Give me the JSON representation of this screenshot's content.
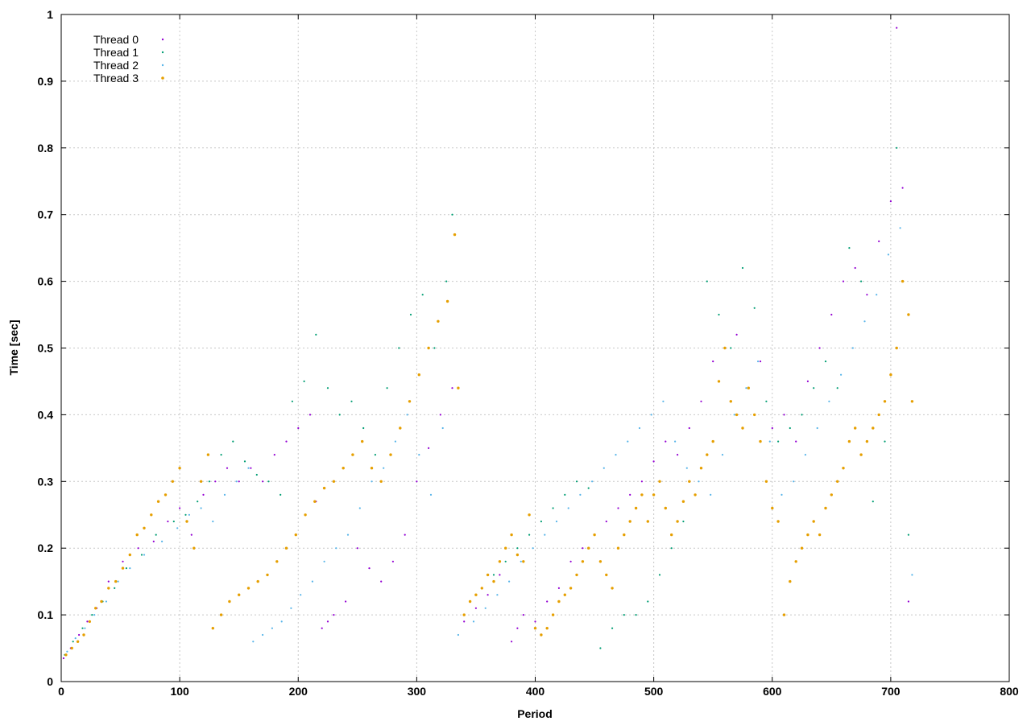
{
  "chart_data": {
    "type": "scatter",
    "title": "",
    "xlabel": "Period",
    "ylabel": "Time [sec]",
    "xlim": [
      0,
      800
    ],
    "ylim": [
      0,
      1
    ],
    "x_ticks": [
      "0",
      "100",
      "200",
      "300",
      "400",
      "500",
      "600",
      "700",
      "800"
    ],
    "y_ticks": [
      "0",
      "0.1",
      "0.2",
      "0.3",
      "0.4",
      "0.5",
      "0.6",
      "0.7",
      "0.8",
      "0.9",
      "1"
    ],
    "grid": true,
    "legend_position": "top-left",
    "series": [
      {
        "name": "Thread 0",
        "color": "#9400d3",
        "x": [
          2,
          8,
          15,
          22,
          30,
          40,
          52,
          65,
          78,
          90,
          100,
          110,
          120,
          130,
          140,
          150,
          160,
          170,
          180,
          190,
          200,
          210,
          215,
          220,
          225,
          230,
          240,
          250,
          260,
          270,
          280,
          290,
          300,
          310,
          320,
          330,
          340,
          350,
          360,
          370,
          380,
          385,
          390,
          400,
          410,
          420,
          430,
          440,
          450,
          460,
          470,
          480,
          490,
          500,
          510,
          520,
          530,
          540,
          550,
          560,
          570,
          580,
          590,
          600,
          610,
          620,
          630,
          640,
          650,
          660,
          670,
          680,
          690,
          700,
          705,
          710,
          715
        ],
        "y": [
          0.035,
          0.05,
          0.07,
          0.09,
          0.11,
          0.15,
          0.18,
          0.2,
          0.21,
          0.24,
          0.26,
          0.22,
          0.28,
          0.3,
          0.32,
          0.3,
          0.32,
          0.3,
          0.34,
          0.36,
          0.38,
          0.4,
          0.27,
          0.08,
          0.09,
          0.1,
          0.12,
          0.2,
          0.17,
          0.15,
          0.18,
          0.22,
          0.3,
          0.35,
          0.4,
          0.44,
          0.09,
          0.11,
          0.13,
          0.16,
          0.06,
          0.08,
          0.1,
          0.09,
          0.12,
          0.14,
          0.18,
          0.2,
          0.22,
          0.24,
          0.26,
          0.28,
          0.3,
          0.33,
          0.36,
          0.34,
          0.38,
          0.42,
          0.48,
          0.5,
          0.52,
          0.44,
          0.48,
          0.38,
          0.4,
          0.36,
          0.45,
          0.5,
          0.55,
          0.6,
          0.62,
          0.58,
          0.66,
          0.72,
          0.98,
          0.74,
          0.12
        ]
      },
      {
        "name": "Thread 1",
        "color": "#009e73",
        "x": [
          3,
          10,
          18,
          26,
          35,
          45,
          55,
          68,
          80,
          95,
          105,
          115,
          125,
          135,
          145,
          155,
          165,
          175,
          185,
          195,
          205,
          215,
          225,
          235,
          245,
          255,
          265,
          275,
          285,
          295,
          305,
          315,
          325,
          330,
          345,
          355,
          365,
          375,
          385,
          395,
          405,
          415,
          425,
          435,
          445,
          455,
          465,
          475,
          485,
          495,
          505,
          515,
          525,
          535,
          545,
          555,
          565,
          575,
          585,
          595,
          605,
          615,
          625,
          635,
          645,
          655,
          665,
          675,
          685,
          695,
          705,
          715
        ],
        "y": [
          0.04,
          0.06,
          0.08,
          0.1,
          0.12,
          0.14,
          0.17,
          0.19,
          0.22,
          0.24,
          0.25,
          0.27,
          0.3,
          0.34,
          0.36,
          0.33,
          0.31,
          0.3,
          0.28,
          0.42,
          0.45,
          0.52,
          0.44,
          0.4,
          0.42,
          0.38,
          0.34,
          0.44,
          0.5,
          0.55,
          0.58,
          0.5,
          0.6,
          0.7,
          0.12,
          0.14,
          0.16,
          0.18,
          0.2,
          0.22,
          0.24,
          0.26,
          0.28,
          0.3,
          0.29,
          0.05,
          0.08,
          0.1,
          0.1,
          0.12,
          0.16,
          0.2,
          0.24,
          0.28,
          0.6,
          0.55,
          0.5,
          0.62,
          0.56,
          0.42,
          0.36,
          0.38,
          0.4,
          0.44,
          0.48,
          0.44,
          0.65,
          0.6,
          0.27,
          0.36,
          0.8,
          0.22
        ]
      },
      {
        "name": "Thread 2",
        "color": "#56b4e9",
        "x": [
          5,
          12,
          20,
          28,
          38,
          48,
          58,
          70,
          85,
          98,
          108,
          118,
          128,
          138,
          148,
          158,
          162,
          170,
          178,
          186,
          194,
          202,
          212,
          222,
          232,
          242,
          252,
          262,
          272,
          282,
          292,
          302,
          312,
          322,
          335,
          348,
          358,
          368,
          378,
          388,
          398,
          408,
          418,
          428,
          438,
          448,
          458,
          468,
          478,
          488,
          498,
          508,
          518,
          528,
          538,
          548,
          558,
          568,
          578,
          588,
          598,
          608,
          618,
          628,
          638,
          648,
          658,
          668,
          678,
          688,
          698,
          708,
          718
        ],
        "y": [
          0.045,
          0.065,
          0.08,
          0.1,
          0.12,
          0.15,
          0.17,
          0.19,
          0.21,
          0.23,
          0.25,
          0.26,
          0.24,
          0.28,
          0.3,
          0.32,
          0.06,
          0.07,
          0.08,
          0.09,
          0.11,
          0.13,
          0.15,
          0.18,
          0.2,
          0.22,
          0.26,
          0.3,
          0.32,
          0.36,
          0.4,
          0.34,
          0.28,
          0.38,
          0.07,
          0.09,
          0.11,
          0.13,
          0.15,
          0.18,
          0.2,
          0.22,
          0.24,
          0.26,
          0.28,
          0.3,
          0.32,
          0.34,
          0.36,
          0.38,
          0.4,
          0.42,
          0.36,
          0.32,
          0.3,
          0.28,
          0.34,
          0.4,
          0.44,
          0.48,
          0.36,
          0.28,
          0.3,
          0.34,
          0.38,
          0.42,
          0.46,
          0.5,
          0.54,
          0.58,
          0.64,
          0.68,
          0.16
        ]
      },
      {
        "name": "Thread 3",
        "color": "#e69f00",
        "x": [
          4,
          9,
          14,
          19,
          24,
          29,
          34,
          40,
          46,
          52,
          58,
          64,
          70,
          76,
          82,
          88,
          94,
          100,
          106,
          112,
          118,
          124,
          128,
          135,
          142,
          150,
          158,
          166,
          174,
          182,
          190,
          198,
          206,
          214,
          222,
          230,
          238,
          246,
          254,
          262,
          270,
          278,
          286,
          294,
          302,
          310,
          318,
          326,
          332,
          335,
          340,
          345,
          350,
          355,
          360,
          365,
          370,
          375,
          380,
          385,
          390,
          395,
          400,
          405,
          410,
          415,
          420,
          425,
          430,
          435,
          440,
          445,
          450,
          455,
          460,
          465,
          470,
          475,
          480,
          485,
          490,
          495,
          500,
          505,
          510,
          515,
          520,
          525,
          530,
          535,
          540,
          545,
          550,
          555,
          560,
          565,
          570,
          575,
          580,
          585,
          590,
          595,
          600,
          605,
          610,
          615,
          620,
          625,
          630,
          635,
          640,
          645,
          650,
          655,
          660,
          665,
          670,
          675,
          680,
          685,
          690,
          695,
          700,
          705,
          710,
          715,
          718
        ],
        "y": [
          0.04,
          0.05,
          0.06,
          0.07,
          0.09,
          0.11,
          0.12,
          0.14,
          0.15,
          0.17,
          0.19,
          0.22,
          0.23,
          0.25,
          0.27,
          0.28,
          0.3,
          0.32,
          0.24,
          0.2,
          0.3,
          0.34,
          0.08,
          0.1,
          0.12,
          0.13,
          0.14,
          0.15,
          0.16,
          0.18,
          0.2,
          0.22,
          0.25,
          0.27,
          0.29,
          0.3,
          0.32,
          0.34,
          0.36,
          0.32,
          0.3,
          0.34,
          0.38,
          0.42,
          0.46,
          0.5,
          0.54,
          0.57,
          0.67,
          0.44,
          0.1,
          0.12,
          0.13,
          0.14,
          0.16,
          0.15,
          0.18,
          0.2,
          0.22,
          0.19,
          0.18,
          0.25,
          0.08,
          0.07,
          0.08,
          0.1,
          0.12,
          0.13,
          0.14,
          0.16,
          0.18,
          0.2,
          0.22,
          0.18,
          0.16,
          0.14,
          0.2,
          0.22,
          0.24,
          0.26,
          0.28,
          0.24,
          0.28,
          0.3,
          0.26,
          0.22,
          0.24,
          0.27,
          0.3,
          0.28,
          0.32,
          0.34,
          0.36,
          0.45,
          0.5,
          0.42,
          0.4,
          0.38,
          0.44,
          0.4,
          0.36,
          0.3,
          0.26,
          0.24,
          0.1,
          0.15,
          0.18,
          0.2,
          0.22,
          0.24,
          0.22,
          0.26,
          0.28,
          0.3,
          0.32,
          0.36,
          0.38,
          0.34,
          0.36,
          0.38,
          0.4,
          0.42,
          0.46,
          0.5,
          0.6,
          0.55,
          0.42
        ]
      }
    ]
  }
}
